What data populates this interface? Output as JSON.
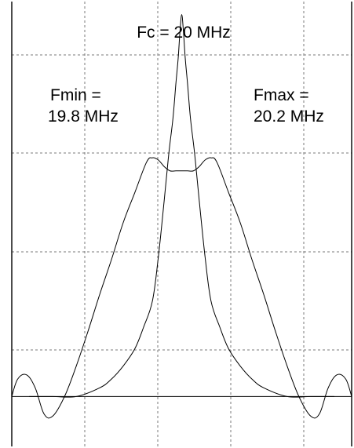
{
  "chart_data": {
    "type": "line",
    "title": "",
    "xlabel": "",
    "ylabel": "",
    "x_unit": "MHz",
    "xlim": [
      19.71,
      20.29
    ],
    "ylim": [
      -0.115,
      0.91
    ],
    "grid": true,
    "annotations": {
      "center": "Fc = 20 MHz",
      "min_line1": "Fmin =",
      "min_line2": "19.8 MHz",
      "max_line1": "Fmax =",
      "max_line2": "20.2 MHz"
    },
    "series": [
      {
        "x": [
          19.71,
          19.72,
          19.735,
          19.75,
          19.765,
          19.78,
          19.8,
          19.82,
          19.84,
          19.86,
          19.88,
          19.9,
          19.92,
          19.94,
          19.95,
          19.96,
          19.97,
          19.98,
          19.99,
          20.0,
          20.01,
          20.02,
          20.03,
          20.04,
          20.05,
          20.06,
          20.08,
          20.1,
          20.12,
          20.14,
          20.16,
          20.18,
          20.2,
          20.22,
          20.235,
          20.25,
          20.265,
          20.28,
          20.29
        ],
        "y": [
          0.0,
          0.04,
          0.05,
          0.02,
          -0.04,
          -0.045,
          0.0,
          0.07,
          0.15,
          0.235,
          0.315,
          0.4,
          0.47,
          0.54,
          0.55,
          0.545,
          0.53,
          0.52,
          0.52,
          0.52,
          0.52,
          0.52,
          0.53,
          0.545,
          0.55,
          0.54,
          0.47,
          0.4,
          0.315,
          0.235,
          0.15,
          0.07,
          0.0,
          -0.045,
          -0.04,
          0.02,
          0.05,
          0.04,
          0.0
        ]
      },
      {
        "x": [
          19.74,
          19.78,
          19.82,
          19.86,
          19.88,
          19.9,
          19.92,
          19.935,
          19.95,
          19.96,
          19.97,
          19.978,
          19.985,
          19.99,
          19.994,
          19.997,
          20.0,
          20.003,
          20.006,
          20.01,
          20.015,
          20.022,
          20.03,
          20.04,
          20.05,
          20.065,
          20.08,
          20.1,
          20.12,
          20.14,
          20.18,
          20.22,
          20.26
        ],
        "y": [
          0.0,
          0.0,
          0.0,
          0.02,
          0.04,
          0.07,
          0.11,
          0.16,
          0.22,
          0.32,
          0.45,
          0.56,
          0.64,
          0.72,
          0.78,
          0.84,
          0.88,
          0.84,
          0.78,
          0.72,
          0.64,
          0.56,
          0.45,
          0.32,
          0.22,
          0.16,
          0.11,
          0.07,
          0.04,
          0.02,
          0.0,
          0.0,
          0.0
        ]
      }
    ]
  }
}
